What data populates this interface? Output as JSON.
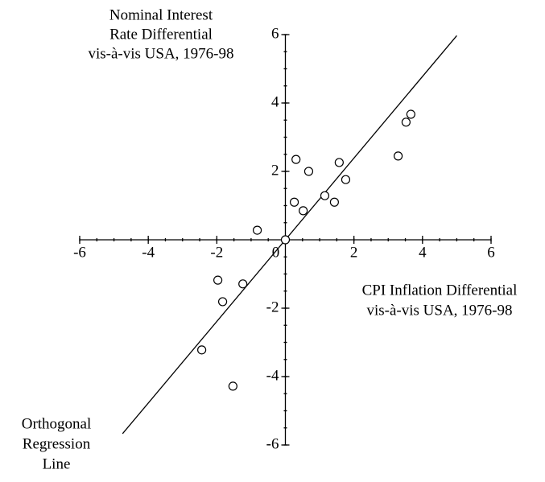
{
  "chart_data": {
    "type": "scatter",
    "y_label_lines": [
      "Nominal Interest",
      "Rate Differential",
      "vis-à-vis USA, 1976-98"
    ],
    "x_label_lines": [
      "CPI Inflation Differential",
      "vis-à-vis USA, 1976-98"
    ],
    "annotation_lines": [
      "Orthogonal",
      "Regression",
      "Line"
    ],
    "xlim": [
      -6,
      6
    ],
    "ylim": [
      -6,
      6
    ],
    "xticks": [
      -6,
      -4,
      -2,
      0,
      2,
      4,
      6
    ],
    "yticks": [
      -6,
      -4,
      -2,
      0,
      2,
      4,
      6
    ],
    "minor_ticks": [
      -6,
      -5.5,
      -5,
      -4.5,
      -4,
      -3.5,
      -3,
      -2.5,
      -2,
      -1.5,
      -1,
      -0.5,
      0,
      0.5,
      1,
      1.5,
      2,
      2.5,
      3,
      3.5,
      4,
      4.5,
      5,
      5.5,
      6
    ],
    "color": "#000000",
    "x": [
      0.31,
      0.68,
      1.57,
      1.76,
      1.15,
      1.43,
      0.26,
      0.52,
      -0.82,
      0,
      3.29,
      3.52,
      3.66,
      -1.97,
      -1.24,
      -1.83,
      -2.44,
      -1.53
    ],
    "y": [
      2.35,
      2.0,
      2.26,
      1.76,
      1.29,
      1.1,
      1.1,
      0.85,
      0.28,
      0,
      2.45,
      3.44,
      3.67,
      -1.18,
      -1.29,
      -1.81,
      -3.22,
      -4.28
    ],
    "fit_line": {
      "x": [
        -4.75,
        5.0
      ],
      "y": [
        -5.67,
        5.97
      ]
    }
  }
}
